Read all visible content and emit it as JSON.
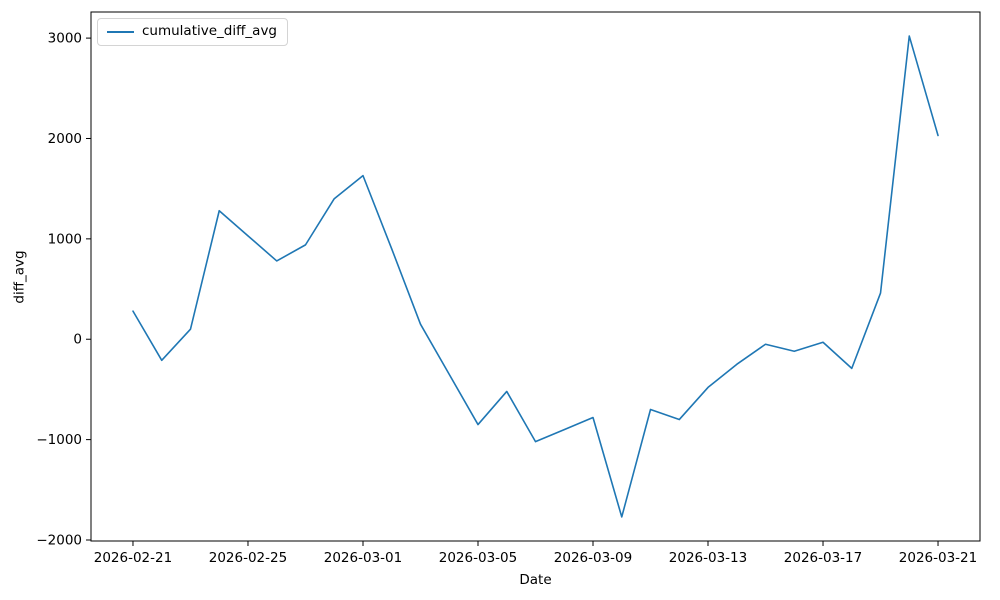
{
  "figure": {
    "xlabel": "Date",
    "ylabel": "diff_avg",
    "legend_label": "cumulative_diff_avg",
    "background_color": "#ffffff",
    "line_color": "#1f77b4",
    "text_color": "#000000"
  },
  "chart_data": {
    "type": "line",
    "title": "",
    "xlabel": "Date",
    "ylabel": "diff_avg",
    "grid": false,
    "legend_position": "upper left",
    "line_color": "#1f77b4",
    "x": [
      "2026-02-21",
      "2026-02-22",
      "2026-02-23",
      "2026-02-24",
      "2026-02-25",
      "2026-02-26",
      "2026-02-27",
      "2026-02-28",
      "2026-03-01",
      "2026-03-02",
      "2026-03-03",
      "2026-03-04",
      "2026-03-05",
      "2026-03-06",
      "2026-03-07",
      "2026-03-08",
      "2026-03-09",
      "2026-03-10",
      "2026-03-11",
      "2026-03-12",
      "2026-03-13",
      "2026-03-14",
      "2026-03-15",
      "2026-03-16",
      "2026-03-17",
      "2026-03-18",
      "2026-03-19",
      "2026-03-20",
      "2026-03-21"
    ],
    "series": [
      {
        "name": "cumulative_diff_avg",
        "values": [
          280,
          -210,
          100,
          1280,
          1030,
          780,
          940,
          1400,
          1630,
          900,
          150,
          -350,
          -850,
          -520,
          -1020,
          -900,
          -780,
          -1770,
          -700,
          -800,
          -480,
          -250,
          -50,
          -120,
          -30,
          -290,
          460,
          3020,
          2030
        ]
      }
    ],
    "x_tick_labels": [
      "2026-02-21",
      "2026-02-25",
      "2026-03-01",
      "2026-03-05",
      "2026-03-09",
      "2026-03-13",
      "2026-03-17",
      "2026-03-21"
    ],
    "x_tick_indices": [
      0,
      4,
      8,
      12,
      16,
      20,
      24,
      28
    ],
    "y_tick_values": [
      -2000,
      -1000,
      0,
      1000,
      2000,
      3000
    ],
    "y_tick_labels": [
      "−2000",
      "−1000",
      "0",
      "1000",
      "2000",
      "3000"
    ],
    "ylim": [
      -2010,
      3260
    ],
    "xlim_day_index": [
      -1.46,
      29.46
    ]
  }
}
